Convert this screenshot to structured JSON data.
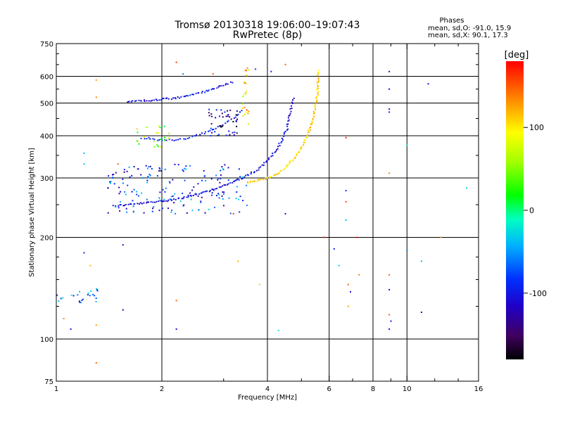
{
  "title_line1": "Tromsø 20130318 19:06:00–19:07:43",
  "title_line2": "RwPretec (8p)",
  "phase_header": "Phases",
  "phase_line1": "mean, sd,O: -91.0, 15.9",
  "phase_line2": "mean, sd,X:  90.1, 17.3",
  "colorbar": {
    "label": "[deg]",
    "ticks": [
      {
        "value": 100,
        "label": "100"
      },
      {
        "value": 0,
        "label": "0"
      },
      {
        "value": -100,
        "label": "-100"
      }
    ],
    "range": [
      -180,
      180
    ]
  },
  "chart_data": {
    "type": "scatter",
    "xlabel": "Frequency [MHz]",
    "ylabel": "Stationary phase Virtual Height [km]",
    "xscale": "log",
    "yscale": "log",
    "xlim": [
      1,
      16
    ],
    "ylim": [
      75,
      750
    ],
    "x_ticks": [
      {
        "value": 1,
        "label": "1"
      },
      {
        "value": 2,
        "label": "2"
      },
      {
        "value": 4,
        "label": "4"
      },
      {
        "value": 6,
        "label": "6"
      },
      {
        "value": 8,
        "label": "8"
      },
      {
        "value": 10,
        "label": "10"
      },
      {
        "value": 16,
        "label": "16"
      }
    ],
    "x_minor_ticks": [
      3,
      5,
      7,
      9,
      12,
      14
    ],
    "x_grid": [
      2,
      4,
      6,
      8,
      10
    ],
    "y_ticks": [
      {
        "value": 75,
        "label": "75"
      },
      {
        "value": 100,
        "label": "100"
      },
      {
        "value": 200,
        "label": "200"
      },
      {
        "value": 300,
        "label": "300"
      },
      {
        "value": 400,
        "label": "400"
      },
      {
        "value": 500,
        "label": "500"
      },
      {
        "value": 600,
        "label": "600"
      },
      {
        "value": 750,
        "label": "750"
      }
    ],
    "y_minor_ticks": [
      125,
      150,
      175,
      250,
      350,
      450,
      550,
      650,
      700
    ],
    "y_grid": [
      100,
      200,
      300,
      400,
      500,
      600
    ],
    "grid": true,
    "traces": [
      {
        "kind": "curve",
        "x": [
          1.45,
          1.6,
          1.8,
          2.0,
          2.3,
          2.7,
          3.1,
          3.5,
          3.8,
          4.0,
          4.3,
          4.55,
          4.75
        ],
        "y": [
          248,
          250,
          253,
          256,
          262,
          273,
          288,
          305,
          320,
          338,
          370,
          420,
          520
        ],
        "phase": -105,
        "density": 4
      },
      {
        "kind": "curve",
        "x": [
          3.5,
          3.9,
          4.2,
          4.5,
          4.8,
          5.0,
          5.2,
          5.4,
          5.55,
          5.6
        ],
        "y": [
          290,
          298,
          305,
          322,
          345,
          370,
          400,
          450,
          530,
          630
        ],
        "phase": 110,
        "density": 5
      },
      {
        "kind": "curve",
        "x": [
          1.6,
          1.9,
          2.2,
          2.5,
          2.8,
          3.0,
          3.2
        ],
        "y": [
          505,
          510,
          517,
          532,
          550,
          565,
          578
        ],
        "phase": -100,
        "density": 4
      },
      {
        "kind": "curve",
        "x": [
          1.75,
          2.0,
          2.3,
          2.6,
          2.9,
          3.2,
          3.4
        ],
        "y": [
          395,
          388,
          390,
          405,
          425,
          450,
          480
        ],
        "phase": -95,
        "density": 3
      },
      {
        "kind": "cloud",
        "x": [
          1.4,
          3.5
        ],
        "y": [
          235,
          330
        ],
        "phase": -85,
        "count": 170
      },
      {
        "kind": "cloud",
        "x": [
          1.65,
          2.1
        ],
        "y": [
          370,
          430
        ],
        "phase": 60,
        "count": 22
      },
      {
        "kind": "cloud",
        "x": [
          2.7,
          3.3
        ],
        "y": [
          400,
          480
        ],
        "phase": -125,
        "count": 45
      },
      {
        "kind": "cloud",
        "x": [
          3.4,
          3.55
        ],
        "y": [
          430,
          640
        ],
        "phase": 110,
        "count": 24
      },
      {
        "kind": "cloud",
        "x": [
          1.0,
          1.35
        ],
        "y": [
          128,
          142
        ],
        "phase": -70,
        "count": 24
      }
    ],
    "isolated_points": [
      {
        "x": 1.3,
        "y": 585,
        "phase": 130
      },
      {
        "x": 1.3,
        "y": 520,
        "phase": 140
      },
      {
        "x": 1.2,
        "y": 355,
        "phase": -40
      },
      {
        "x": 1.2,
        "y": 330,
        "phase": -30
      },
      {
        "x": 1.2,
        "y": 180,
        "phase": -90
      },
      {
        "x": 1.25,
        "y": 165,
        "phase": 120
      },
      {
        "x": 1.3,
        "y": 110,
        "phase": 130
      },
      {
        "x": 1.3,
        "y": 85,
        "phase": 150
      },
      {
        "x": 1.05,
        "y": 115,
        "phase": 140
      },
      {
        "x": 1.1,
        "y": 107,
        "phase": -100
      },
      {
        "x": 1.45,
        "y": 300,
        "phase": -80
      },
      {
        "x": 1.55,
        "y": 190,
        "phase": -110
      },
      {
        "x": 1.55,
        "y": 122,
        "phase": -130
      },
      {
        "x": 1.5,
        "y": 330,
        "phase": 150
      },
      {
        "x": 2.2,
        "y": 660,
        "phase": 160
      },
      {
        "x": 2.3,
        "y": 610,
        "phase": -60
      },
      {
        "x": 2.2,
        "y": 130,
        "phase": 150
      },
      {
        "x": 2.2,
        "y": 107,
        "phase": -110
      },
      {
        "x": 2.8,
        "y": 610,
        "phase": 150
      },
      {
        "x": 3.2,
        "y": 235,
        "phase": 160
      },
      {
        "x": 3.3,
        "y": 170,
        "phase": 120
      },
      {
        "x": 3.7,
        "y": 630,
        "phase": -80
      },
      {
        "x": 3.8,
        "y": 145,
        "phase": 110
      },
      {
        "x": 4.1,
        "y": 620,
        "phase": -100
      },
      {
        "x": 4.3,
        "y": 106,
        "phase": -20
      },
      {
        "x": 4.5,
        "y": 235,
        "phase": -110
      },
      {
        "x": 4.5,
        "y": 650,
        "phase": 150
      },
      {
        "x": 5.8,
        "y": 200,
        "phase": 170
      },
      {
        "x": 6.2,
        "y": 185,
        "phase": -100
      },
      {
        "x": 6.4,
        "y": 165,
        "phase": -30
      },
      {
        "x": 6.7,
        "y": 395,
        "phase": 170
      },
      {
        "x": 6.7,
        "y": 275,
        "phase": -90
      },
      {
        "x": 6.7,
        "y": 255,
        "phase": 160
      },
      {
        "x": 6.7,
        "y": 225,
        "phase": -40
      },
      {
        "x": 6.8,
        "y": 145,
        "phase": 150
      },
      {
        "x": 6.9,
        "y": 138,
        "phase": -110
      },
      {
        "x": 6.8,
        "y": 125,
        "phase": 130
      },
      {
        "x": 7.2,
        "y": 200,
        "phase": 175
      },
      {
        "x": 7.3,
        "y": 155,
        "phase": 140
      },
      {
        "x": 8.9,
        "y": 620,
        "phase": -110
      },
      {
        "x": 8.9,
        "y": 550,
        "phase": -110
      },
      {
        "x": 8.9,
        "y": 480,
        "phase": -100
      },
      {
        "x": 8.9,
        "y": 470,
        "phase": -90
      },
      {
        "x": 8.9,
        "y": 310,
        "phase": 140
      },
      {
        "x": 8.9,
        "y": 155,
        "phase": 150
      },
      {
        "x": 8.9,
        "y": 140,
        "phase": -110
      },
      {
        "x": 8.9,
        "y": 118,
        "phase": 150
      },
      {
        "x": 9.0,
        "y": 113,
        "phase": -100
      },
      {
        "x": 8.9,
        "y": 107,
        "phase": -110
      },
      {
        "x": 10.0,
        "y": 375,
        "phase": -20
      },
      {
        "x": 10.0,
        "y": 183,
        "phase": -60
      },
      {
        "x": 11.0,
        "y": 170,
        "phase": -40
      },
      {
        "x": 11.0,
        "y": 120,
        "phase": -110
      },
      {
        "x": 11.5,
        "y": 570,
        "phase": -110
      },
      {
        "x": 12.5,
        "y": 200,
        "phase": 130
      },
      {
        "x": 14.8,
        "y": 280,
        "phase": -30
      }
    ]
  }
}
